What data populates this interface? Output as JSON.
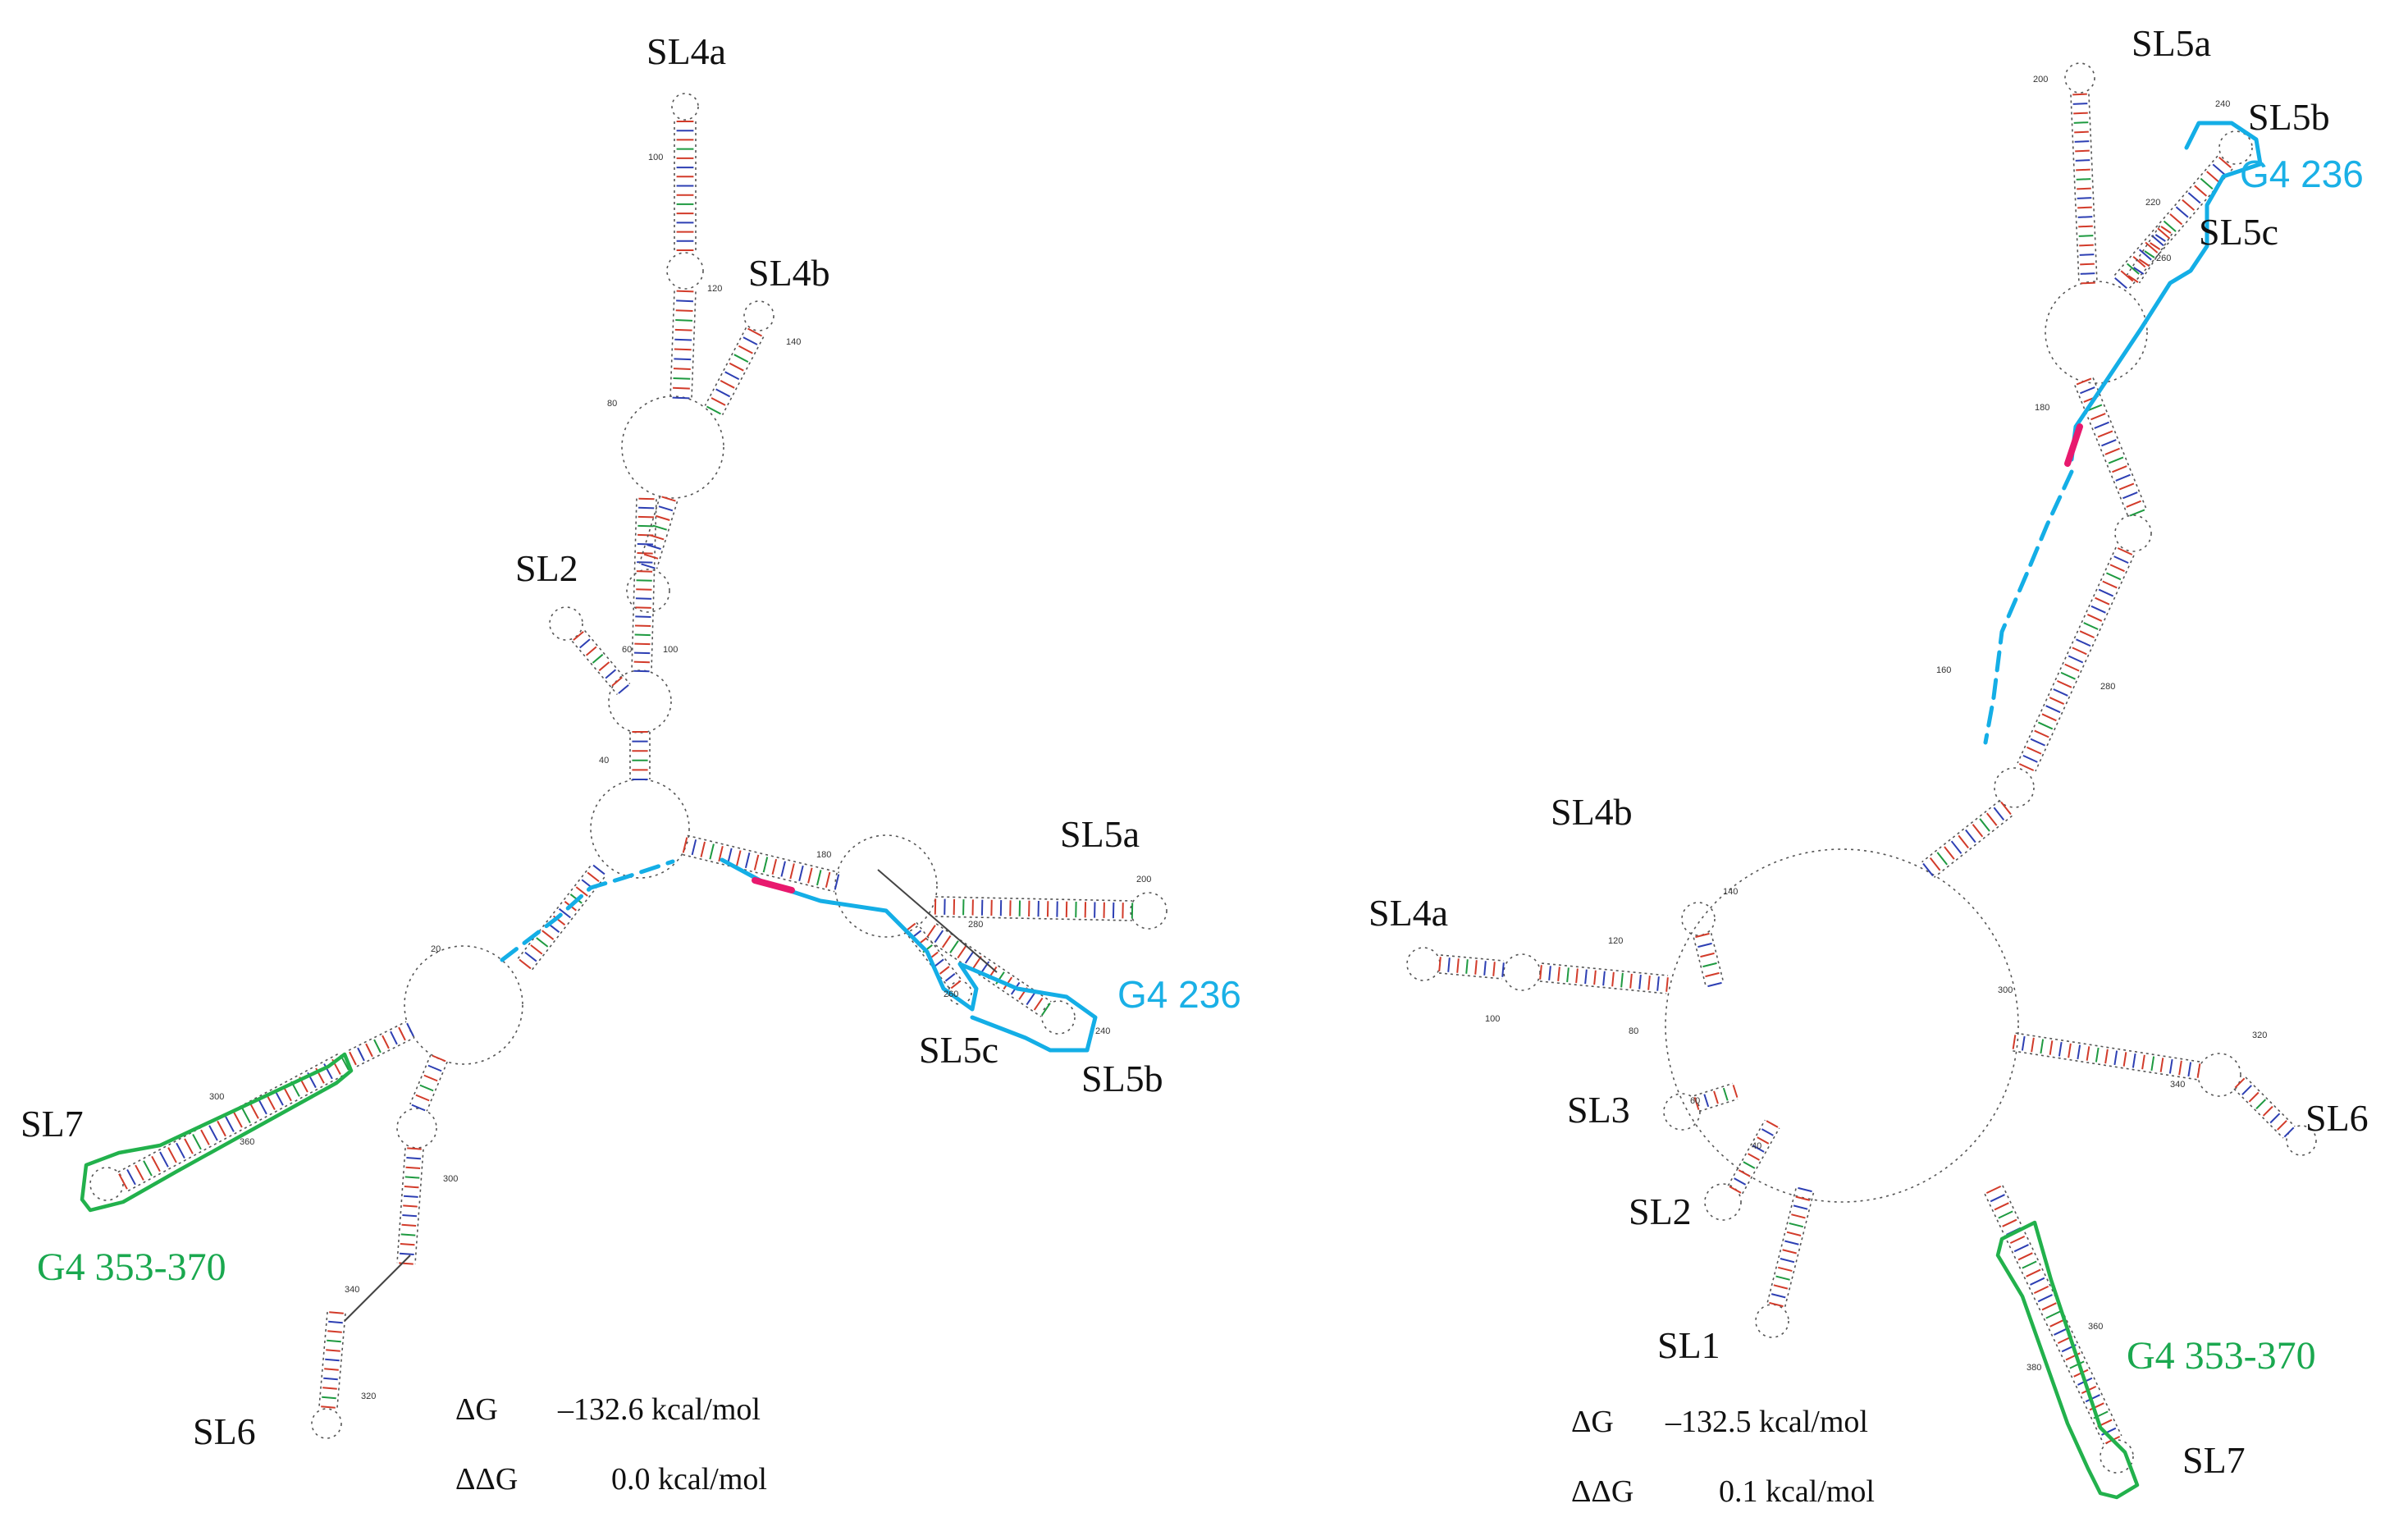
{
  "left_structure": {
    "labels": {
      "sl4a": "SL4a",
      "sl4b": "SL4b",
      "sl2": "SL2",
      "sl5a": "SL5a",
      "sl5b": "SL5b",
      "sl5c": "SL5c",
      "sl6": "SL6",
      "sl7": "SL7",
      "g4_236": "G4 236",
      "g4_353": "G4 353-370"
    },
    "numbers": [
      "100",
      "120",
      "140",
      "80",
      "60",
      "100",
      "40",
      "20",
      "180",
      "200",
      "280",
      "260",
      "240",
      "300",
      "360",
      "340",
      "320",
      "300"
    ],
    "energy": {
      "dg_symbol": "ΔG",
      "dg_value": "–132.6 kcal/mol",
      "ddg_symbol": "ΔΔG",
      "ddg_value": "0.0 kcal/mol"
    }
  },
  "right_structure": {
    "labels": {
      "sl5a": "SL5a",
      "sl5b": "SL5b",
      "sl5c": "SL5c",
      "sl4b": "SL4b",
      "sl4a": "SL4a",
      "sl3": "SL3",
      "sl2": "SL2",
      "sl1": "SL1",
      "sl6": "SL6",
      "sl7": "SL7",
      "g4_236": "G4 236",
      "g4_353": "G4 353-370"
    },
    "numbers": [
      "200",
      "240",
      "220",
      "260",
      "180",
      "160",
      "280",
      "140",
      "120",
      "100",
      "80",
      "60",
      "40",
      "300",
      "320",
      "340",
      "360",
      "380"
    ],
    "energy": {
      "dg_symbol": "ΔG",
      "dg_value": "–132.5 kcal/mol",
      "ddg_symbol": "ΔΔG",
      "ddg_value": "0.1 kcal/mol"
    }
  },
  "colors": {
    "g4_236": "#14aee6",
    "g4_353": "#22b14c",
    "highlight": "#e8196e",
    "pair_red": "#d23b2a",
    "pair_blue": "#2d3fb3",
    "pair_green": "#1e9a40"
  }
}
